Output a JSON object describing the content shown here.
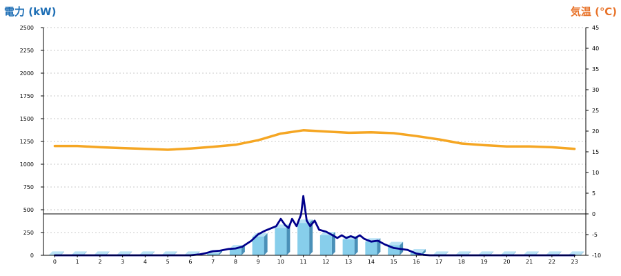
{
  "chart_data": {
    "type": "bar+line",
    "left_axis_title": "電力 (kW)",
    "right_axis_title": "気温 (℃)",
    "left_axis_color": "#1f6fb5",
    "right_axis_color": "#e8732a",
    "ylim_left": [
      0,
      2500
    ],
    "ylim_right": [
      -10,
      45
    ],
    "yticks_left": [
      0,
      250,
      500,
      750,
      1000,
      1250,
      1500,
      1750,
      2000,
      2250,
      2500
    ],
    "yticks_right": [
      -10,
      -5,
      0,
      5,
      10,
      15,
      20,
      25,
      30,
      35,
      40,
      45
    ],
    "categories": [
      "0",
      "1",
      "2",
      "3",
      "4",
      "5",
      "6",
      "7",
      "8",
      "9",
      "10",
      "11",
      "12",
      "13",
      "14",
      "15",
      "16",
      "17",
      "18",
      "19",
      "20",
      "21",
      "22",
      "23"
    ],
    "grid": "horizontal dotted",
    "reference_line": {
      "axis": "right",
      "value": 0
    },
    "series": [
      {
        "kind": "bar",
        "axis": "left",
        "color": "#87ceeb",
        "values": [
          5,
          5,
          5,
          5,
          5,
          5,
          5,
          20,
          75,
          205,
          300,
          355,
          220,
          175,
          150,
          110,
          30,
          5,
          5,
          5,
          5,
          5,
          5,
          5
        ]
      },
      {
        "kind": "line",
        "axis": "left",
        "color": "#00008b",
        "x": [
          0,
          1,
          2,
          3,
          4,
          5,
          6,
          6.4,
          6.7,
          7,
          7.3,
          7.7,
          8,
          8.3,
          8.7,
          9,
          9.3,
          9.6,
          9.8,
          10,
          10.2,
          10.35,
          10.5,
          10.7,
          10.9,
          11,
          11.15,
          11.3,
          11.5,
          11.7,
          12,
          12.3,
          12.5,
          12.7,
          12.9,
          13.1,
          13.3,
          13.5,
          13.7,
          14,
          14.3,
          14.6,
          15,
          15.3,
          15.6,
          16,
          16.3,
          16.6,
          17,
          18,
          19,
          20,
          21,
          22,
          23
        ],
        "values": [
          0,
          0,
          0,
          0,
          0,
          0,
          0,
          10,
          25,
          45,
          50,
          70,
          75,
          95,
          160,
          230,
          270,
          300,
          320,
          400,
          330,
          300,
          400,
          320,
          450,
          650,
          380,
          320,
          380,
          280,
          260,
          220,
          190,
          220,
          190,
          210,
          190,
          220,
          180,
          150,
          160,
          120,
          80,
          70,
          60,
          20,
          5,
          0,
          0,
          0,
          0,
          0,
          0,
          0,
          0
        ]
      },
      {
        "kind": "line",
        "axis": "right",
        "color": "#f5a623",
        "x": [
          0,
          1,
          2,
          3,
          4,
          5,
          6,
          7,
          8,
          9,
          10,
          11,
          12,
          13,
          14,
          15,
          16,
          17,
          18,
          19,
          20,
          21,
          22,
          23
        ],
        "values": [
          16.4,
          16.4,
          16.1,
          15.9,
          15.7,
          15.5,
          15.8,
          16.2,
          16.7,
          17.8,
          19.4,
          20.2,
          19.9,
          19.6,
          19.7,
          19.5,
          18.8,
          18.0,
          17.0,
          16.6,
          16.3,
          16.3,
          16.1,
          15.7
        ]
      }
    ]
  }
}
